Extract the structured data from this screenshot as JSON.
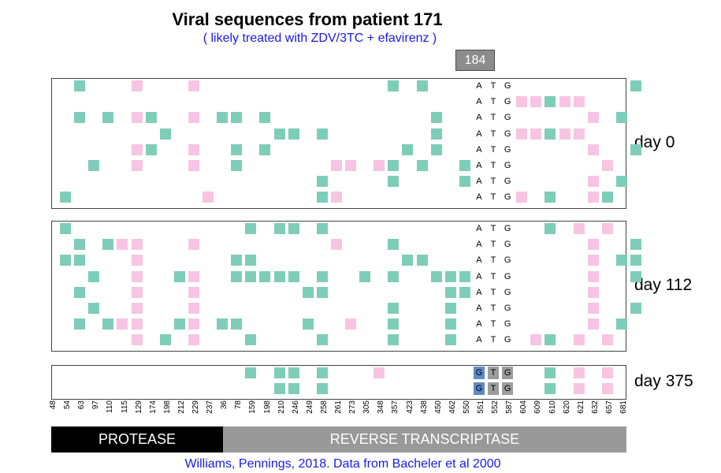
{
  "title": "Viral sequences from patient 171",
  "subtitle": "( likely treated with ZDV/3TC + efavirenz )",
  "highlight_codon": "184",
  "positions": [
    "48",
    "54",
    "63",
    "97",
    "110",
    "115",
    "129",
    "174",
    "198",
    "212",
    "229",
    "237",
    "36",
    "78",
    "159",
    "198",
    "210",
    "246",
    "249",
    "258",
    "261",
    "273",
    "305",
    "348",
    "357",
    "423",
    "438",
    "450",
    "462",
    "550",
    "551",
    "552",
    "587",
    "604",
    "609",
    "610",
    "620",
    "621",
    "632",
    "657",
    "681"
  ],
  "regions": {
    "protease": "PROTEASE",
    "rt": "REVERSE TRANSCRIPTASE"
  },
  "credit": "Williams, Pennings, 2018. Data from Bacheler et al 2000",
  "colors": {
    "green": "#7ecdb8",
    "pink": "#f7c5e3",
    "codon_box": "#8c8c8c",
    "blue_text": "#1a1ae6"
  },
  "panels": [
    {
      "label": "day 0",
      "rows": [
        {
          "codon": [
            "A",
            "T",
            "G"
          ],
          "cells": {
            "1": "g",
            "5": "p",
            "9": "p",
            "23": "g",
            "25": "g",
            "40": "g"
          }
        },
        {
          "codon": [
            "A",
            "T",
            "G"
          ],
          "cells": {
            "32": "p",
            "33": "p",
            "34": "g",
            "35": "p",
            "36": "p"
          }
        },
        {
          "codon": [
            "A",
            "T",
            "G"
          ],
          "cells": {
            "1": "g",
            "3": "g",
            "5": "p",
            "6": "g",
            "9": "p",
            "11": "g",
            "12": "g",
            "14": "g",
            "26": "g",
            "37": "p",
            "39": "g"
          }
        },
        {
          "codon": [
            "A",
            "T",
            "G"
          ],
          "cells": {
            "7": "g",
            "15": "g",
            "16": "g",
            "18": "g",
            "26": "g",
            "32": "p",
            "33": "p",
            "34": "g",
            "35": "p",
            "36": "p"
          }
        },
        {
          "codon": [
            "A",
            "T",
            "G"
          ],
          "cells": {
            "5": "p",
            "6": "g",
            "9": "p",
            "12": "g",
            "14": "g",
            "24": "g",
            "26": "g",
            "37": "p",
            "40": "g"
          }
        },
        {
          "codon": [
            "A",
            "T",
            "G"
          ],
          "cells": {
            "2": "g",
            "5": "p",
            "9": "p",
            "12": "g",
            "19": "p",
            "20": "p",
            "22": "p",
            "23": "g",
            "25": "g",
            "28": "g",
            "38": "p"
          }
        },
        {
          "codon": [
            "A",
            "T",
            "G"
          ],
          "cells": {
            "18": "g",
            "23": "g",
            "28": "g",
            "37": "p",
            "39": "g"
          }
        },
        {
          "codon": [
            "A",
            "T",
            "G"
          ],
          "cells": {
            "0": "g",
            "10": "p",
            "18": "g",
            "19": "p",
            "32": "p",
            "34": "g",
            "37": "p",
            "38": "g"
          }
        }
      ]
    },
    {
      "label": "day 112",
      "rows": [
        {
          "codon": [
            "A",
            "T",
            "G"
          ],
          "cells": {
            "0": "g",
            "13": "g",
            "15": "g",
            "16": "g",
            "18": "g",
            "34": "g",
            "36": "p",
            "38": "p"
          }
        },
        {
          "codon": [
            "A",
            "T",
            "G"
          ],
          "cells": {
            "1": "g",
            "3": "g",
            "4": "p",
            "5": "p",
            "9": "p",
            "19": "p",
            "23": "g",
            "37": "p",
            "40": "g"
          }
        },
        {
          "codon": [
            "A",
            "T",
            "G"
          ],
          "cells": {
            "0": "g",
            "1": "g",
            "5": "p",
            "12": "g",
            "13": "g",
            "24": "g",
            "25": "g",
            "37": "p",
            "39": "g",
            "40": "g"
          }
        },
        {
          "codon": [
            "A",
            "T",
            "G"
          ],
          "cells": {
            "2": "g",
            "5": "p",
            "8": "g",
            "9": "p",
            "12": "g",
            "13": "g",
            "14": "g",
            "15": "g",
            "16": "g",
            "18": "g",
            "21": "g",
            "23": "g",
            "26": "g",
            "27": "g",
            "28": "g",
            "37": "p",
            "40": "g"
          }
        },
        {
          "codon": [
            "A",
            "T",
            "G"
          ],
          "cells": {
            "1": "g",
            "5": "p",
            "9": "p",
            "17": "g",
            "18": "g",
            "27": "g",
            "28": "g",
            "37": "p"
          }
        },
        {
          "codon": [
            "A",
            "T",
            "G"
          ],
          "cells": {
            "2": "g",
            "5": "p",
            "9": "p",
            "23": "g",
            "27": "g",
            "37": "p",
            "40": "g"
          }
        },
        {
          "codon": [
            "A",
            "T",
            "G"
          ],
          "cells": {
            "1": "g",
            "3": "g",
            "4": "p",
            "5": "p",
            "8": "g",
            "9": "p",
            "11": "g",
            "12": "g",
            "17": "g",
            "20": "p",
            "23": "g",
            "27": "g",
            "37": "p",
            "39": "g"
          }
        },
        {
          "codon": [
            "A",
            "T",
            "G"
          ],
          "cells": {
            "5": "p",
            "7": "g",
            "9": "p",
            "13": "g",
            "18": "g",
            "23": "g",
            "27": "g",
            "33": "p",
            "34": "g",
            "36": "p",
            "38": "p"
          }
        }
      ]
    },
    {
      "label": "day 375",
      "rows": [
        {
          "codon": [
            "G",
            "T",
            "G"
          ],
          "mutated": true,
          "cells": {
            "13": "g",
            "15": "g",
            "16": "g",
            "18": "g",
            "22": "p",
            "34": "g",
            "36": "p",
            "38": "p"
          }
        },
        {
          "codon": [
            "G",
            "T",
            "G"
          ],
          "mutated": true,
          "cells": {
            "15": "g",
            "16": "g",
            "18": "g",
            "34": "g",
            "36": "p",
            "38": "p"
          }
        }
      ]
    }
  ]
}
